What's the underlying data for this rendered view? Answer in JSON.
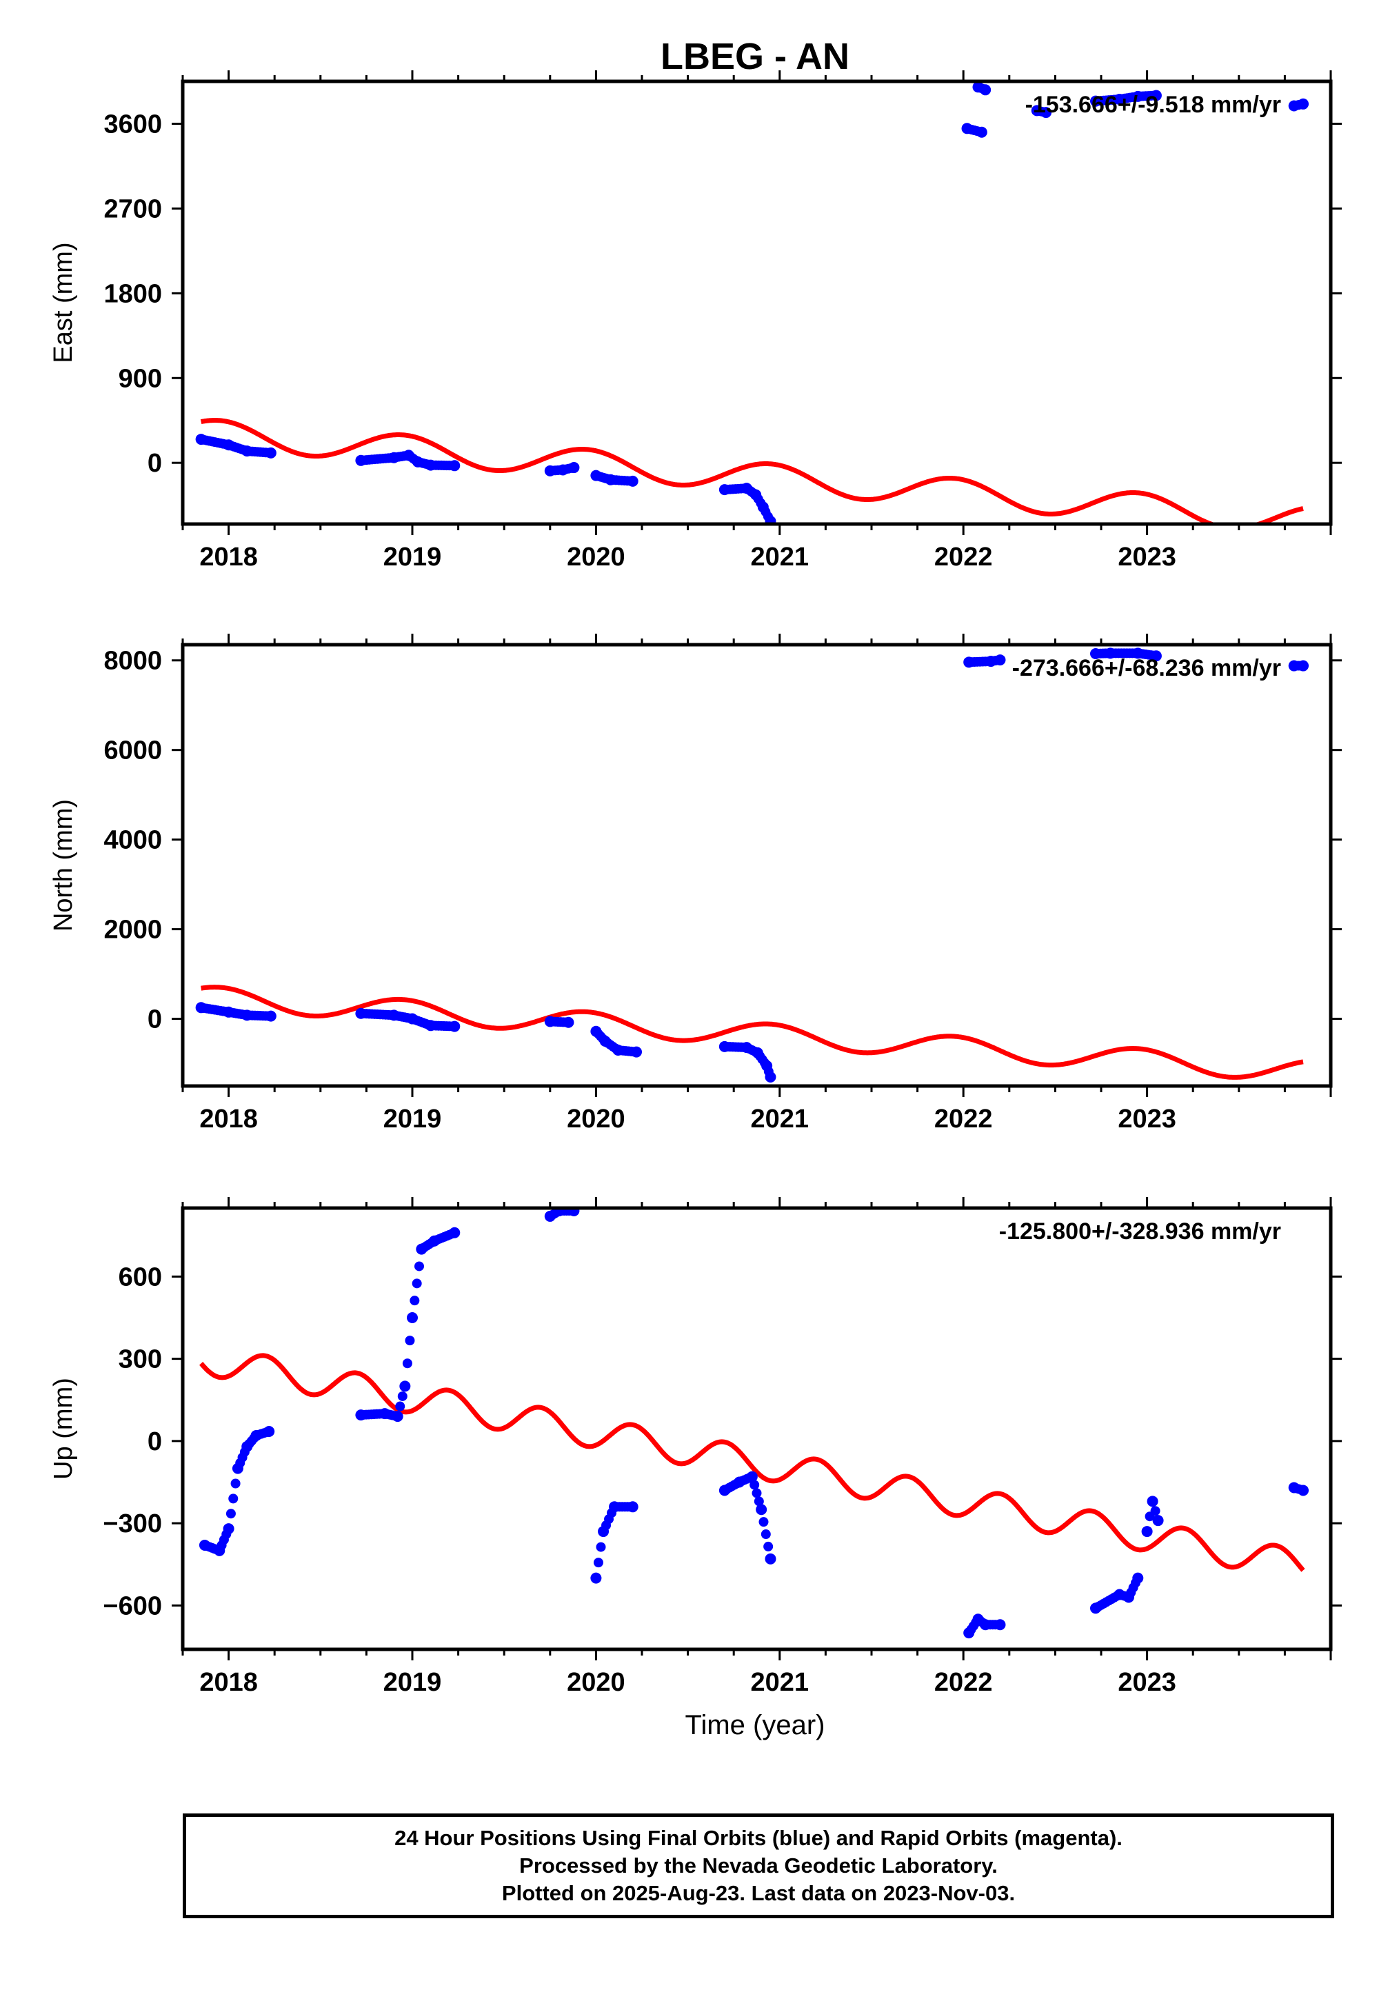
{
  "title": "LBEG - AN",
  "x_label": "Time (year)",
  "footer": {
    "line1": "24 Hour Positions Using Final Orbits (blue) and Rapid Orbits (magenta).",
    "line2": "Processed by the Nevada Geodetic Laboratory.",
    "line3": "Plotted on 2025-Aug-23. Last data on 2023-Nov-03."
  },
  "colors": {
    "final_orbits": "#0000ff",
    "model": "#ff0000",
    "axes": "#000000"
  },
  "chart_data": [
    {
      "type": "scatter",
      "ylabel": "East (mm)",
      "rate_text": "-153.666+/-9.518 mm/yr",
      "xlim": [
        2017.75,
        2024.0
      ],
      "ylim": [
        -650,
        4050
      ],
      "yticks": [
        0,
        900,
        1800,
        2700,
        3600
      ],
      "xticks": [
        2018,
        2019,
        2020,
        2021,
        2022,
        2023
      ],
      "x_tick_labels": [
        "2018",
        "2019",
        "2020",
        "2021",
        "2022",
        "2023"
      ],
      "model": {
        "offset": 315,
        "trend": -153.666,
        "amplitude": 150,
        "period": 1.0,
        "phase_peak": 2017.95
      },
      "segments": [
        {
          "x": [
            2017.85,
            2018.0,
            2018.1,
            2018.23
          ],
          "y": [
            250,
            190,
            125,
            105
          ]
        },
        {
          "x": [
            2018.72,
            2018.9,
            2018.98,
            2019.03,
            2019.1,
            2019.23
          ],
          "y": [
            25,
            55,
            80,
            10,
            -25,
            -30
          ]
        },
        {
          "x": [
            2019.75,
            2019.82,
            2019.88
          ],
          "y": [
            -85,
            -75,
            -50
          ]
        },
        {
          "x": [
            2020.0,
            2020.08,
            2020.2
          ],
          "y": [
            -135,
            -180,
            -195
          ]
        },
        {
          "x": [
            2020.7,
            2020.82,
            2020.87,
            2020.91,
            2020.95
          ],
          "y": [
            -285,
            -270,
            -340,
            -470,
            -620
          ]
        },
        {
          "x": [
            2022.02,
            2022.1
          ],
          "y": [
            3550,
            3510
          ]
        },
        {
          "x": [
            2022.08,
            2022.12
          ],
          "y": [
            3990,
            3960
          ]
        },
        {
          "x": [
            2022.4,
            2022.45
          ],
          "y": [
            3740,
            3720
          ]
        },
        {
          "x": [
            2022.72,
            2022.85,
            2022.95,
            2023.05
          ],
          "y": [
            3840,
            3860,
            3890,
            3900
          ]
        },
        {
          "x": [
            2023.8,
            2023.85
          ],
          "y": [
            3790,
            3810
          ]
        }
      ]
    },
    {
      "type": "scatter",
      "ylabel": "North (mm)",
      "rate_text": "-273.666+/-68.236 mm/yr",
      "xlim": [
        2017.75,
        2024.0
      ],
      "ylim": [
        -1500,
        8350
      ],
      "yticks": [
        0,
        2000,
        4000,
        6000,
        8000
      ],
      "xticks": [
        2018,
        2019,
        2020,
        2021,
        2022,
        2023
      ],
      "x_tick_labels": [
        "2018",
        "2019",
        "2020",
        "2021",
        "2022",
        "2023"
      ],
      "model": {
        "offset": 480,
        "trend": -273.666,
        "amplitude": 250,
        "period": 1.0,
        "phase_peak": 2017.95
      },
      "segments": [
        {
          "x": [
            2017.85,
            2018.0,
            2018.1,
            2018.23
          ],
          "y": [
            250,
            150,
            80,
            60
          ]
        },
        {
          "x": [
            2018.72,
            2018.9,
            2019.0,
            2019.1,
            2019.23
          ],
          "y": [
            120,
            80,
            0,
            -150,
            -170
          ]
        },
        {
          "x": [
            2019.75,
            2019.85
          ],
          "y": [
            -60,
            -80
          ]
        },
        {
          "x": [
            2020.0,
            2020.05,
            2020.12,
            2020.22
          ],
          "y": [
            -280,
            -500,
            -700,
            -740
          ]
        },
        {
          "x": [
            2020.7,
            2020.82,
            2020.88,
            2020.93,
            2020.95
          ],
          "y": [
            -620,
            -640,
            -760,
            -1050,
            -1300
          ]
        },
        {
          "x": [
            2022.03,
            2022.15,
            2022.2
          ],
          "y": [
            7960,
            7980,
            8010
          ]
        },
        {
          "x": [
            2022.72,
            2022.8,
            2022.95,
            2023.05
          ],
          "y": [
            8150,
            8160,
            8160,
            8100
          ]
        },
        {
          "x": [
            2023.8,
            2023.85
          ],
          "y": [
            7880,
            7880
          ]
        }
      ]
    },
    {
      "type": "scatter",
      "ylabel": "Up (mm)",
      "rate_text": "-125.800+/-328.936 mm/yr",
      "xlim": [
        2017.75,
        2024.0
      ],
      "ylim": [
        -760,
        850
      ],
      "yticks": [
        -600,
        -300,
        0,
        300,
        600
      ],
      "xticks": [
        2018,
        2019,
        2020,
        2021,
        2022,
        2023
      ],
      "x_tick_labels": [
        "2018",
        "2019",
        "2020",
        "2021",
        "2022",
        "2023"
      ],
      "model": {
        "offset": 300,
        "trend": -125.8,
        "amplitude": 55,
        "period": 0.5,
        "phase_peak": 2018.2
      },
      "segments": [
        {
          "x": [
            2017.87,
            2017.95,
            2018.0,
            2018.05,
            2018.1,
            2018.15,
            2018.22
          ],
          "y": [
            -380,
            -400,
            -320,
            -100,
            -20,
            20,
            35
          ]
        },
        {
          "x": [
            2018.72,
            2018.85,
            2018.92,
            2018.96,
            2019.0,
            2019.05,
            2019.12,
            2019.23
          ],
          "y": [
            95,
            100,
            90,
            200,
            450,
            700,
            730,
            760
          ]
        },
        {
          "x": [
            2019.75,
            2019.8,
            2019.88
          ],
          "y": [
            820,
            840,
            840
          ]
        },
        {
          "x": [
            2020.0,
            2020.04,
            2020.1,
            2020.2
          ],
          "y": [
            -500,
            -330,
            -240,
            -240
          ]
        },
        {
          "x": [
            2020.7,
            2020.78,
            2020.85,
            2020.9,
            2020.95
          ],
          "y": [
            -180,
            -150,
            -130,
            -250,
            -430
          ]
        },
        {
          "x": [
            2022.03,
            2022.08,
            2022.12,
            2022.2
          ],
          "y": [
            -700,
            -650,
            -670,
            -670
          ]
        },
        {
          "x": [
            2022.72,
            2022.85,
            2022.9,
            2022.95
          ],
          "y": [
            -610,
            -560,
            -570,
            -500
          ]
        },
        {
          "x": [
            2023.0,
            2023.03,
            2023.06
          ],
          "y": [
            -330,
            -220,
            -290
          ]
        },
        {
          "x": [
            2023.8,
            2023.85
          ],
          "y": [
            -170,
            -180
          ]
        }
      ]
    }
  ]
}
